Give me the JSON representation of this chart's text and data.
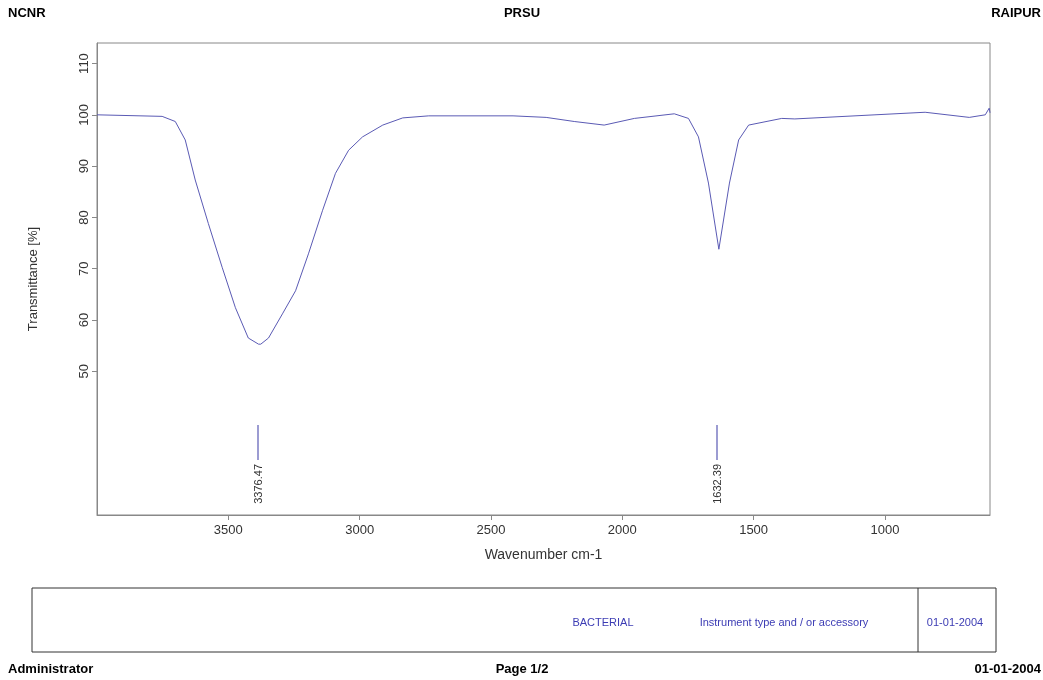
{
  "chart_data": {
    "type": "line",
    "xlabel": "Wavenumber cm-1",
    "ylabel": "Transmittance [%]",
    "x": [
      4000,
      3752,
      3702,
      3664,
      3626,
      3576,
      3523,
      3473,
      3424,
      3385,
      3376.47,
      3347,
      3294,
      3244,
      3195,
      3141,
      3092,
      3042,
      2989,
      2912,
      2836,
      2737,
      2416,
      2290,
      2183,
      2069,
      1954,
      1802,
      1748,
      1710,
      1672,
      1632.39,
      1592,
      1557,
      1519,
      1393,
      1343,
      1038,
      847,
      679,
      618,
      603,
      600
    ],
    "series": [
      {
        "color": "#5a5ab4",
        "values": [
          100,
          99.7,
          98.7,
          95.1,
          87.3,
          78.8,
          70.2,
          62.4,
          56.5,
          55.3,
          55.3,
          56.5,
          61.2,
          65.7,
          72.9,
          81.4,
          88.6,
          93.1,
          95.7,
          98.0,
          99.4,
          99.8,
          99.8,
          99.5,
          98.7,
          98.0,
          99.3,
          100.2,
          99.3,
          95.7,
          86.7,
          73.8,
          86.7,
          95.1,
          98.0,
          99.3,
          99.2,
          100,
          100.5,
          99.5,
          100,
          101.3,
          100.4
        ]
      }
    ],
    "xlim": [
      4000,
      600
    ],
    "xticks": [
      3500,
      3000,
      2500,
      2000,
      1500,
      1000
    ],
    "ylim": [
      22,
      114
    ],
    "yticks": [
      50,
      60,
      70,
      80,
      90,
      100,
      110
    ],
    "grid": false,
    "marker": "none",
    "line_style": "solid",
    "annotations": [
      "NCNR",
      "PRSU",
      "RAIPUR",
      "BACTERIAL",
      "Instrument type and / or accessory",
      "01-01-2004",
      "Administrator",
      "Page 1/2",
      "01-01-2004",
      "3376.47",
      "1632.39"
    ]
  }
}
